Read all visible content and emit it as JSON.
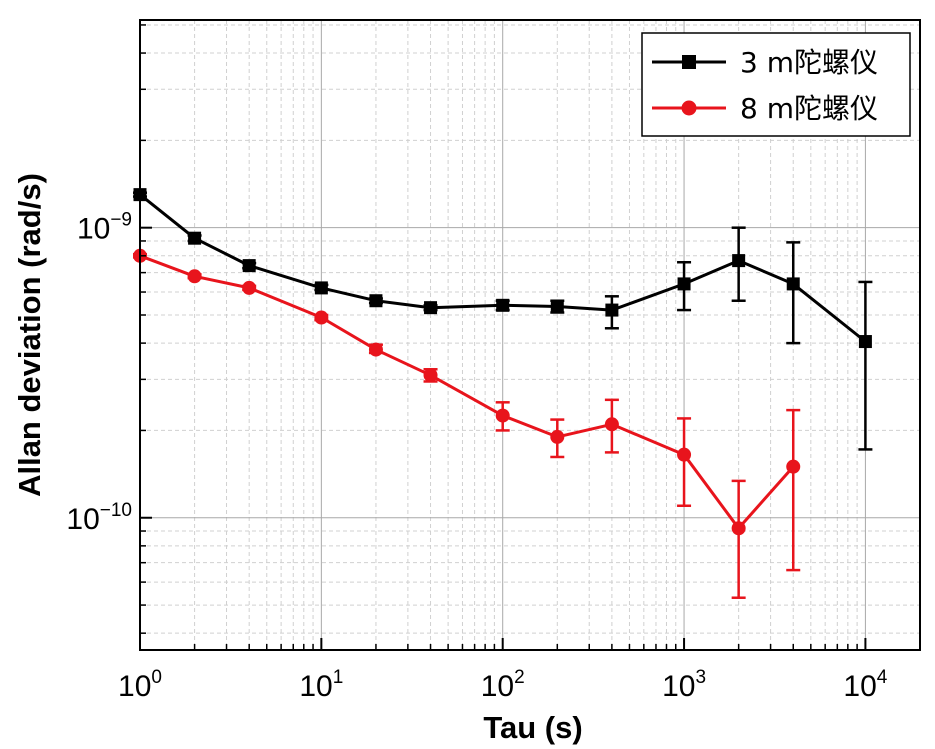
{
  "chart_data": {
    "type": "line",
    "xlabel": "Tau (s)",
    "ylabel": "Allan deviation (rad/s)",
    "x_scale": "log",
    "y_scale": "log",
    "xlim": [
      1,
      20000
    ],
    "ylim": [
      3.5e-11,
      5.2e-09
    ],
    "grid": true,
    "legend_position": "top-right",
    "x_ticks": [
      {
        "base": "10",
        "exp": "0"
      },
      {
        "base": "10",
        "exp": "1"
      },
      {
        "base": "10",
        "exp": "2"
      },
      {
        "base": "10",
        "exp": "3"
      },
      {
        "base": "10",
        "exp": "4"
      }
    ],
    "y_ticks": [
      {
        "base": "10",
        "exp": "−10"
      },
      {
        "base": "10",
        "exp": "−9"
      }
    ],
    "series": [
      {
        "name": "3 m陀螺仪",
        "color": "#000000",
        "marker": "square",
        "x": [
          1,
          2,
          4,
          10,
          20,
          40,
          100,
          200,
          400,
          1000,
          2000,
          4000,
          10000
        ],
        "y": [
          1.3e-09,
          9.2e-10,
          7.4e-10,
          6.2e-10,
          5.6e-10,
          5.3e-10,
          5.4e-10,
          5.35e-10,
          5.2e-10,
          6.4e-10,
          7.7e-10,
          6.4e-10,
          4.05e-10
        ],
        "err_low": [
          1.28e-09,
          9e-10,
          7.25e-10,
          6.1e-10,
          5.5e-10,
          5.2e-10,
          5.2e-10,
          5.1e-10,
          4.5e-10,
          5.2e-10,
          5.6e-10,
          4e-10,
          1.72e-10
        ],
        "err_high": [
          1.32e-09,
          9.4e-10,
          7.55e-10,
          6.35e-10,
          5.7e-10,
          5.4e-10,
          5.6e-10,
          5.6e-10,
          5.8e-10,
          7.6e-10,
          1e-09,
          8.9e-10,
          6.5e-10
        ]
      },
      {
        "name": "8 m陀螺仪",
        "color": "#e8141c",
        "marker": "circle",
        "x": [
          1,
          2,
          4,
          10,
          20,
          40,
          100,
          200,
          400,
          1000,
          2000,
          4000
        ],
        "y": [
          8e-10,
          6.8e-10,
          6.2e-10,
          4.9e-10,
          3.8e-10,
          3.1e-10,
          2.25e-10,
          1.9e-10,
          2.1e-10,
          1.65e-10,
          9.2e-11,
          1.5e-10
        ],
        "err_low": [
          7.9e-10,
          6.7e-10,
          6.1e-10,
          4.8e-10,
          3.7e-10,
          2.95e-10,
          2e-10,
          1.62e-10,
          1.68e-10,
          1.1e-10,
          5.3e-11,
          6.6e-11
        ],
        "err_high": [
          8.1e-10,
          6.9e-10,
          6.3e-10,
          5e-10,
          3.95e-10,
          3.25e-10,
          2.5e-10,
          2.18e-10,
          2.55e-10,
          2.2e-10,
          1.34e-10,
          2.35e-10
        ]
      }
    ]
  }
}
